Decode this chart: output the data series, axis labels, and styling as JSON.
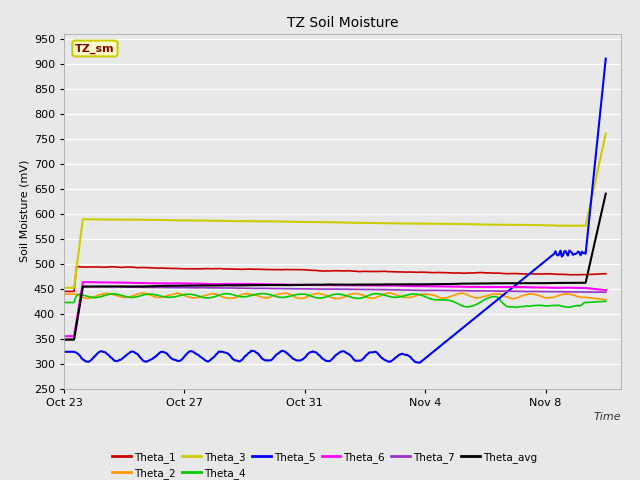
{
  "title": "TZ Soil Moisture",
  "ylabel": "Soil Moisture (mV)",
  "xlabel": "Time",
  "ylim": [
    250,
    960
  ],
  "yticks": [
    250,
    300,
    350,
    400,
    450,
    500,
    550,
    600,
    650,
    700,
    750,
    800,
    850,
    900,
    950
  ],
  "bg_color": "#e8e8e8",
  "plot_bg_color": "#e8e8e8",
  "tag_text": "TZ_sm",
  "tag_bg": "#ffffcc",
  "tag_edge": "#cccc00",
  "tag_text_color": "#8b0000",
  "series_order": [
    "Theta_1",
    "Theta_2",
    "Theta_3",
    "Theta_4",
    "Theta_5",
    "Theta_6",
    "Theta_7",
    "Theta_avg"
  ],
  "series": {
    "Theta_1": {
      "color": "#cc0000",
      "lw": 1.2
    },
    "Theta_2": {
      "color": "#ff9900",
      "lw": 1.2
    },
    "Theta_3": {
      "color": "#cccc00",
      "lw": 1.5
    },
    "Theta_4": {
      "color": "#00cc00",
      "lw": 1.2
    },
    "Theta_5": {
      "color": "#0000ff",
      "lw": 1.5
    },
    "Theta_6": {
      "color": "#ff00ff",
      "lw": 1.5
    },
    "Theta_7": {
      "color": "#9933cc",
      "lw": 1.2
    },
    "Theta_avg": {
      "color": "#000000",
      "lw": 1.5
    }
  },
  "xtick_labels": [
    "Oct 23",
    "Oct 27",
    "Oct 31",
    "Nov 4",
    "Nov 8"
  ],
  "xtick_positions": [
    0,
    4,
    8,
    12,
    16
  ],
  "legend_row1": [
    "Theta_1",
    "Theta_2",
    "Theta_3",
    "Theta_4",
    "Theta_5",
    "Theta_6"
  ],
  "legend_row2": [
    "Theta_7",
    "Theta_avg"
  ]
}
